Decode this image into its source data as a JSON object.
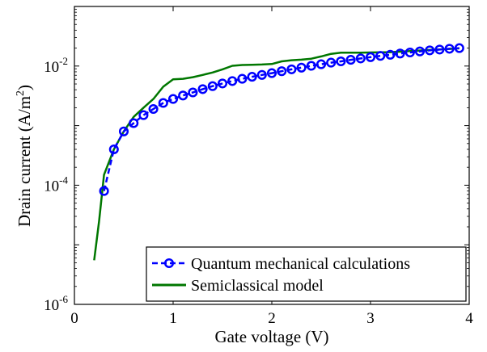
{
  "chart_data": {
    "type": "line",
    "title": "",
    "xlabel": "Gate voltage (V)",
    "ylabel_base": "Drain current (A/m",
    "ylabel_sup": "2",
    "ylabel_end": ")",
    "xlim": [
      0,
      4
    ],
    "ylim": [
      1e-06,
      0.1
    ],
    "yscale": "log",
    "grid": false,
    "legend_position": "bottom-right",
    "x_ticks": [
      "0",
      "1",
      "2",
      "3",
      "4"
    ],
    "y_ticks": [
      {
        "base": "10",
        "exp": "-6"
      },
      {
        "base": "10",
        "exp": "-4"
      },
      {
        "base": "10",
        "exp": "-2"
      }
    ],
    "series": [
      {
        "name": "Quantum mechanical calculations",
        "color": "#0000ff",
        "style": "dashed-circle-markers",
        "x": [
          0.3,
          0.4,
          0.5,
          0.6,
          0.7,
          0.8,
          0.9,
          1.0,
          1.1,
          1.2,
          1.3,
          1.4,
          1.5,
          1.6,
          1.7,
          1.8,
          1.9,
          2.0,
          2.1,
          2.2,
          2.3,
          2.4,
          2.5,
          2.6,
          2.7,
          2.8,
          2.9,
          3.0,
          3.1,
          3.2,
          3.3,
          3.4,
          3.5,
          3.6,
          3.7,
          3.8,
          3.9
        ],
        "y": [
          8e-05,
          0.0004,
          0.0008,
          0.0011,
          0.0015,
          0.0019,
          0.0024,
          0.0028,
          0.0032,
          0.0036,
          0.0041,
          0.0046,
          0.0051,
          0.0056,
          0.0061,
          0.0066,
          0.0071,
          0.0076,
          0.0082,
          0.0088,
          0.0094,
          0.0101,
          0.0107,
          0.0114,
          0.012,
          0.0127,
          0.0134,
          0.0141,
          0.0148,
          0.0155,
          0.0162,
          0.0169,
          0.0176,
          0.0183,
          0.0189,
          0.0195,
          0.02
        ]
      },
      {
        "name": "Semiclassical model",
        "color": "#007700",
        "style": "solid",
        "x": [
          0.2,
          0.25,
          0.3,
          0.4,
          0.5,
          0.6,
          0.7,
          0.8,
          0.9,
          1.0,
          1.1,
          1.2,
          1.3,
          1.4,
          1.5,
          1.6,
          1.7,
          1.8,
          1.9,
          2.0,
          2.1,
          2.2,
          2.3,
          2.4,
          2.5,
          2.6,
          2.7,
          2.8,
          2.9,
          3.0,
          3.1,
          3.2,
          3.3,
          3.4,
          3.5,
          3.6,
          3.7,
          3.8,
          3.9
        ],
        "y": [
          5.5e-06,
          2.5e-05,
          0.00015,
          0.0004,
          0.0008,
          0.0014,
          0.002,
          0.0028,
          0.0045,
          0.006,
          0.0061,
          0.0065,
          0.0071,
          0.0078,
          0.0088,
          0.0101,
          0.0104,
          0.0105,
          0.0106,
          0.0108,
          0.012,
          0.0125,
          0.0128,
          0.0133,
          0.0145,
          0.016,
          0.0168,
          0.0168,
          0.0168,
          0.0169,
          0.017,
          0.0171,
          0.0174,
          0.0178,
          0.0182,
          0.0186,
          0.019,
          0.0194,
          0.0198
        ]
      }
    ]
  }
}
